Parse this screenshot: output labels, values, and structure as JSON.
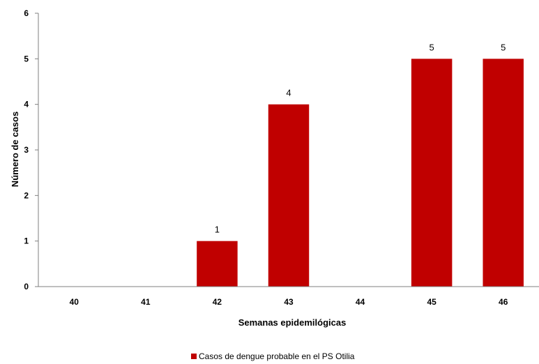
{
  "chart_data": {
    "type": "bar",
    "categories": [
      "40",
      "41",
      "42",
      "43",
      "44",
      "45",
      "46"
    ],
    "series": [
      {
        "name": "Casos de dengue probable en el PS Otilia",
        "values": [
          0,
          0,
          1,
          4,
          0,
          5,
          5
        ],
        "color": "#C00000"
      }
    ],
    "data_labels": [
      "",
      "",
      "1",
      "4",
      "",
      "5",
      "5"
    ],
    "xlabel": "Semanas epidemilógicas",
    "ylabel": "Número de casos",
    "ylim": [
      0,
      6
    ],
    "yticks": [
      "0",
      "1",
      "2",
      "3",
      "4",
      "5",
      "6"
    ],
    "grid": false,
    "legend_position": "bottom"
  }
}
